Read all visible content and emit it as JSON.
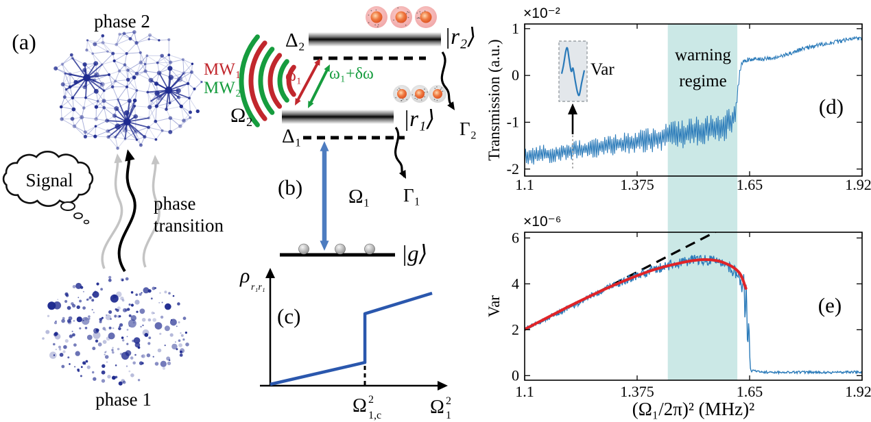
{
  "figure": {
    "background": "#ffffff",
    "panel_a": {
      "label": "(a)",
      "phase2_label": "phase 2",
      "phase1_label": "phase 1",
      "signal_label": "Signal",
      "transition_label_line1": "phase",
      "transition_label_line2": "transition",
      "node_color": "#1e2a8f",
      "edge_color": "#9aa2d4"
    },
    "panel_b": {
      "label": "(b)",
      "mw1_label": "MW₁",
      "mw2_label": "MW₂",
      "omega2_label": "Ω₂",
      "omega1_label": "Ω₁",
      "delta2_label": "Δ₂",
      "delta1_label": "Δ₁",
      "omega_freq_label": "ω₁",
      "omega_freq_shift_label": "ω₁+δω",
      "state_r2_label": "|r₂⟩",
      "state_r1_label": "|r₁⟩",
      "state_g_label": "|g⟩",
      "gamma2_label": "Γ₂",
      "gamma1_label": "Γ₁",
      "mw1_color": "#c1272d",
      "mw2_color": "#169c3e",
      "probe_arrow_color": "#4d7cc0"
    }
  },
  "chart_data": [
    {
      "panel": "(d)",
      "type": "line",
      "ylabel": "Transmission (a.u.)",
      "y_exponent_label": "×10⁻²",
      "xlim": [
        1.1,
        1.925
      ],
      "ylim": [
        -2.15,
        1.1
      ],
      "xtick_values": [
        1.1,
        1.375,
        1.65,
        1.925
      ],
      "xtick_labels": [
        "1.1",
        "1.375",
        "1.65",
        "1.925"
      ],
      "ytick_values": [
        1,
        0,
        -1,
        -2
      ],
      "ytick_labels": [
        "1",
        "0",
        "-1",
        "-2"
      ],
      "warning_region_x": [
        1.45,
        1.62
      ],
      "warning_region_color": "#cbe8e6",
      "warning_label_line1": "warning",
      "warning_label_line2": "regime",
      "inset_label": "Var",
      "inset_wave": [
        [
          0,
          0.45
        ],
        [
          0.08,
          0.62
        ],
        [
          0.18,
          0.9
        ],
        [
          0.25,
          0.97
        ],
        [
          0.33,
          0.74
        ],
        [
          0.42,
          0.5
        ],
        [
          0.5,
          0.56
        ],
        [
          0.6,
          0.3
        ],
        [
          0.7,
          0.07
        ],
        [
          0.78,
          0.02
        ],
        [
          0.88,
          0.26
        ],
        [
          1,
          0.52
        ]
      ],
      "series": [
        {
          "name": "transmission",
          "color": "#2a7ab9",
          "center": [
            [
              1.1,
              -1.74
            ],
            [
              1.14,
              -1.7
            ],
            [
              1.18,
              -1.65
            ],
            [
              1.22,
              -1.6
            ],
            [
              1.26,
              -1.56
            ],
            [
              1.3,
              -1.51
            ],
            [
              1.34,
              -1.46
            ],
            [
              1.38,
              -1.41
            ],
            [
              1.42,
              -1.36
            ],
            [
              1.45,
              -1.31
            ],
            [
              1.48,
              -1.26
            ],
            [
              1.51,
              -1.21
            ],
            [
              1.54,
              -1.16
            ],
            [
              1.57,
              -1.1
            ],
            [
              1.59,
              -1.05
            ],
            [
              1.605,
              -0.98
            ],
            [
              1.612,
              -0.9
            ],
            [
              1.617,
              -0.72
            ],
            [
              1.62,
              -0.45
            ],
            [
              1.623,
              -0.15
            ],
            [
              1.626,
              0.08
            ],
            [
              1.63,
              0.22
            ],
            [
              1.636,
              0.3
            ],
            [
              1.645,
              0.34
            ],
            [
              1.66,
              0.36
            ],
            [
              1.68,
              0.36
            ],
            [
              1.7,
              0.37
            ],
            [
              1.72,
              0.39
            ],
            [
              1.74,
              0.44
            ],
            [
              1.76,
              0.51
            ],
            [
              1.78,
              0.57
            ],
            [
              1.8,
              0.61
            ],
            [
              1.82,
              0.65
            ],
            [
              1.84,
              0.68
            ],
            [
              1.86,
              0.71
            ],
            [
              1.88,
              0.75
            ],
            [
              1.9,
              0.78
            ],
            [
              1.925,
              0.81
            ]
          ],
          "noise_amp": [
            [
              1.1,
              0.21
            ],
            [
              1.2,
              0.21
            ],
            [
              1.3,
              0.22
            ],
            [
              1.4,
              0.26
            ],
            [
              1.45,
              0.3
            ],
            [
              1.5,
              0.32
            ],
            [
              1.55,
              0.34
            ],
            [
              1.59,
              0.36
            ],
            [
              1.61,
              0.3
            ],
            [
              1.617,
              0.18
            ],
            [
              1.622,
              0.1
            ],
            [
              1.628,
              0.06
            ],
            [
              1.64,
              0.05
            ],
            [
              1.7,
              0.045
            ],
            [
              1.925,
              0.045
            ]
          ]
        }
      ]
    },
    {
      "panel": "(e)",
      "type": "line",
      "ylabel": "Var",
      "y_exponent_label": "×10⁻⁶",
      "xlabel": "(Ω₁/2π)² (MHz)²",
      "xlim": [
        1.1,
        1.925
      ],
      "ylim": [
        -0.2,
        6.25
      ],
      "xtick_values": [
        1.1,
        1.375,
        1.65,
        1.925
      ],
      "xtick_labels": [
        "1.1",
        "1.375",
        "1.65",
        "1.925"
      ],
      "ytick_values": [
        6,
        4,
        2,
        0
      ],
      "ytick_labels": [
        "6",
        "4",
        "2",
        "0"
      ],
      "warning_region_x": [
        1.45,
        1.62
      ],
      "warning_region_color": "#cbe8e6",
      "series": [
        {
          "name": "var-data",
          "color": "#2a7ab9",
          "center": [
            [
              1.1,
              2.02
            ],
            [
              1.15,
              2.45
            ],
            [
              1.2,
              2.9
            ],
            [
              1.25,
              3.35
            ],
            [
              1.3,
              3.8
            ],
            [
              1.35,
              4.18
            ],
            [
              1.4,
              4.52
            ],
            [
              1.44,
              4.75
            ],
            [
              1.48,
              4.93
            ],
            [
              1.52,
              5.05
            ],
            [
              1.55,
              5.04
            ],
            [
              1.58,
              4.9
            ],
            [
              1.6,
              4.72
            ],
            [
              1.615,
              4.5
            ],
            [
              1.625,
              4.25
            ],
            [
              1.632,
              3.6
            ],
            [
              1.636,
              4.7
            ],
            [
              1.639,
              2.2
            ],
            [
              1.642,
              4.4
            ],
            [
              1.645,
              1.0
            ],
            [
              1.648,
              2.6
            ],
            [
              1.651,
              0.35
            ],
            [
              1.655,
              0.22
            ],
            [
              1.67,
              0.17
            ],
            [
              1.7,
              0.15
            ],
            [
              1.75,
              0.14
            ],
            [
              1.8,
              0.15
            ],
            [
              1.85,
              0.13
            ],
            [
              1.9,
              0.16
            ],
            [
              1.925,
              0.14
            ]
          ],
          "noise_amp": [
            [
              1.1,
              0.1
            ],
            [
              1.2,
              0.13
            ],
            [
              1.3,
              0.15
            ],
            [
              1.4,
              0.2
            ],
            [
              1.5,
              0.22
            ],
            [
              1.6,
              0.25
            ],
            [
              1.625,
              0.3
            ],
            [
              1.632,
              0.2
            ],
            [
              1.651,
              0.1
            ],
            [
              1.658,
              0.05
            ],
            [
              1.925,
              0.05
            ]
          ]
        },
        {
          "name": "quadratic-fit",
          "color": "#e02428",
          "points": [
            [
              1.1,
              2.02
            ],
            [
              1.15,
              2.48
            ],
            [
              1.2,
              2.94
            ],
            [
              1.25,
              3.38
            ],
            [
              1.3,
              3.8
            ],
            [
              1.35,
              4.18
            ],
            [
              1.4,
              4.52
            ],
            [
              1.44,
              4.74
            ],
            [
              1.48,
              4.91
            ],
            [
              1.51,
              5.01
            ],
            [
              1.54,
              5.06
            ],
            [
              1.57,
              5.01
            ],
            [
              1.59,
              4.9
            ],
            [
              1.61,
              4.72
            ],
            [
              1.625,
              4.48
            ],
            [
              1.633,
              4.2
            ],
            [
              1.638,
              3.95
            ],
            [
              1.641,
              3.8
            ]
          ]
        },
        {
          "name": "linear-extrapolation",
          "color": "#000000",
          "dashed": true,
          "points": [
            [
              1.1,
              2.0
            ],
            [
              1.567,
              6.27
            ]
          ]
        }
      ]
    },
    {
      "panel": "(c)",
      "type": "schematic-line",
      "ylabel_base": "ρ",
      "ylabel_sub": "r₁r₁",
      "xlabel_base": "Ω",
      "xlabel_sub": "1",
      "xlabel_sup": "2",
      "xcrit_base": "Ω",
      "xcrit_sup": "2",
      "xcrit_sub": "1,c",
      "curve_color": "#2a57ad",
      "curve": {
        "pre": [
          [
            0,
            0
          ],
          [
            0.585,
            0.206
          ]
        ],
        "jump_to": 0.665,
        "post": [
          [
            0.585,
            0.665
          ],
          [
            1,
            0.858
          ]
        ],
        "critical_x": 0.585
      }
    }
  ]
}
